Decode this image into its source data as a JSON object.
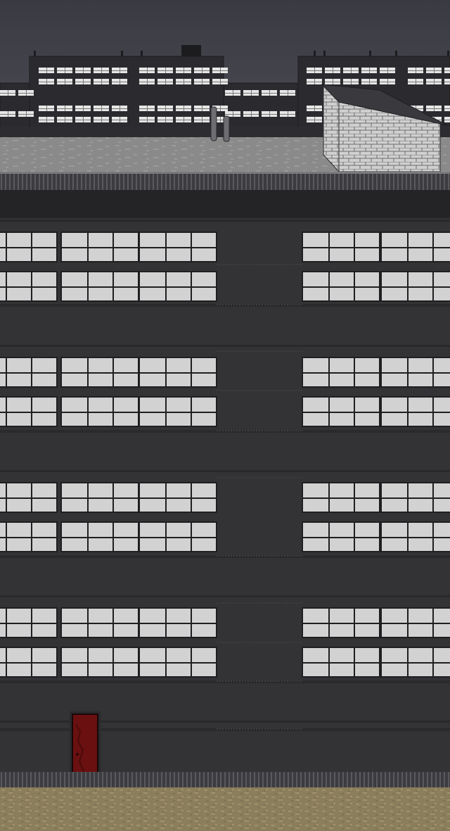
{
  "scene": {
    "kind": "side-view pixel-art building facade",
    "colors": {
      "sky_top": "#3a3a42",
      "sky_bottom": "#4b4b55",
      "distant_building": "#2b2b2f",
      "distant_window": "#e6e6e6",
      "roof_floor": "#8a8a8a",
      "rooftop_shed_brick": "#cfcfcf",
      "facade": "#333335",
      "facade_dark_band": "#242426",
      "window_frame": "#1f1f21",
      "window_glass": "#d2d2d2",
      "door": "#6a1010",
      "ground": "#8a7e5c"
    },
    "icons": [
      "brick-shed-icon",
      "vent-pipe-icon",
      "door-icon"
    ]
  }
}
